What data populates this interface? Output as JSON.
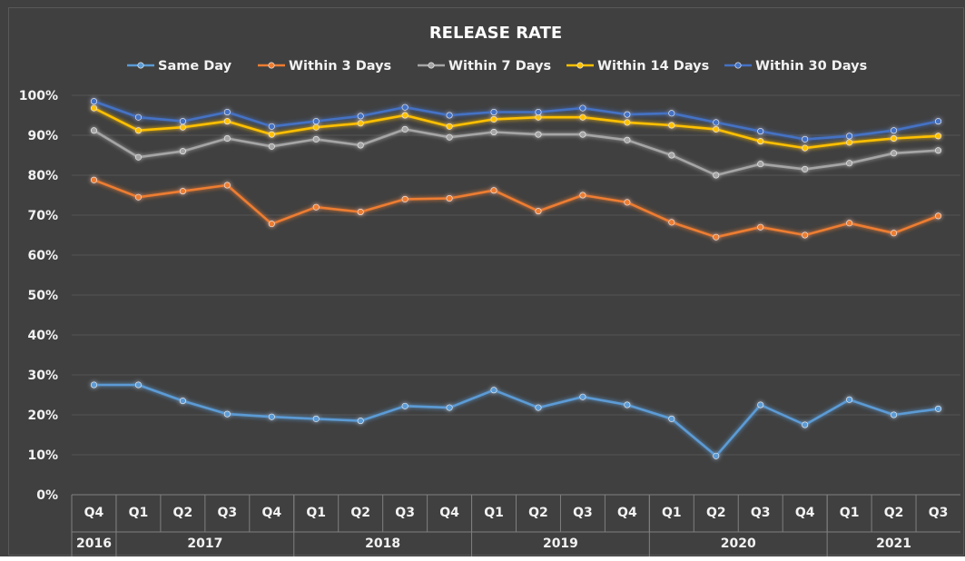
{
  "chart_data": {
    "type": "line",
    "title": "RELEASE RATE",
    "y_axis": {
      "min": 0,
      "max": 100,
      "ticks": [
        "0%",
        "10%",
        "20%",
        "30%",
        "40%",
        "50%",
        "60%",
        "70%",
        "80%",
        "90%",
        "100%"
      ]
    },
    "categories": [
      "Q4",
      "Q1",
      "Q2",
      "Q3",
      "Q4",
      "Q1",
      "Q2",
      "Q3",
      "Q4",
      "Q1",
      "Q2",
      "Q3",
      "Q4",
      "Q1",
      "Q2",
      "Q3",
      "Q4",
      "Q1",
      "Q2",
      "Q3"
    ],
    "year_groups": [
      {
        "label": "2016",
        "count": 1
      },
      {
        "label": "2017",
        "count": 4
      },
      {
        "label": "2018",
        "count": 4
      },
      {
        "label": "2019",
        "count": 4
      },
      {
        "label": "2020",
        "count": 4
      },
      {
        "label": "2021",
        "count": 3
      }
    ],
    "grid": true,
    "legend_position": "top",
    "series": [
      {
        "name": "Same Day",
        "color": "#5b9bd5",
        "values": [
          27.5,
          27.5,
          23.5,
          20.2,
          19.5,
          19.0,
          18.5,
          22.2,
          21.8,
          26.2,
          21.8,
          24.5,
          22.5,
          19.0,
          9.7,
          22.5,
          17.5,
          23.8,
          20.0,
          21.5
        ]
      },
      {
        "name": "Within 3 Days",
        "color": "#ed7d31",
        "values": [
          78.8,
          74.5,
          76.0,
          77.5,
          67.8,
          72.0,
          70.8,
          74.0,
          74.2,
          76.2,
          71.0,
          75.0,
          73.2,
          68.2,
          64.5,
          67.0,
          65.0,
          68.0,
          65.5,
          69.8
        ]
      },
      {
        "name": "Within 7 Days",
        "color": "#a5a5a5",
        "values": [
          91.2,
          84.5,
          86.0,
          89.2,
          87.2,
          89.0,
          87.5,
          91.5,
          89.5,
          90.8,
          90.2,
          90.2,
          88.8,
          85.0,
          80.0,
          82.8,
          81.5,
          83.0,
          85.5,
          86.2
        ]
      },
      {
        "name": "Within 14 Days",
        "color": "#ffc000",
        "values": [
          96.8,
          91.2,
          92.0,
          93.5,
          90.2,
          92.0,
          93.0,
          95.0,
          92.2,
          94.0,
          94.5,
          94.5,
          93.2,
          92.5,
          91.5,
          88.5,
          86.8,
          88.2,
          89.2,
          89.8
        ]
      },
      {
        "name": "Within 30 Days",
        "color": "#4472c4",
        "values": [
          98.5,
          94.5,
          93.5,
          95.8,
          92.2,
          93.5,
          94.8,
          97.0,
          95.0,
          95.8,
          95.8,
          96.8,
          95.2,
          95.5,
          93.2,
          91.0,
          89.0,
          89.8,
          91.2,
          93.5
        ]
      }
    ]
  }
}
